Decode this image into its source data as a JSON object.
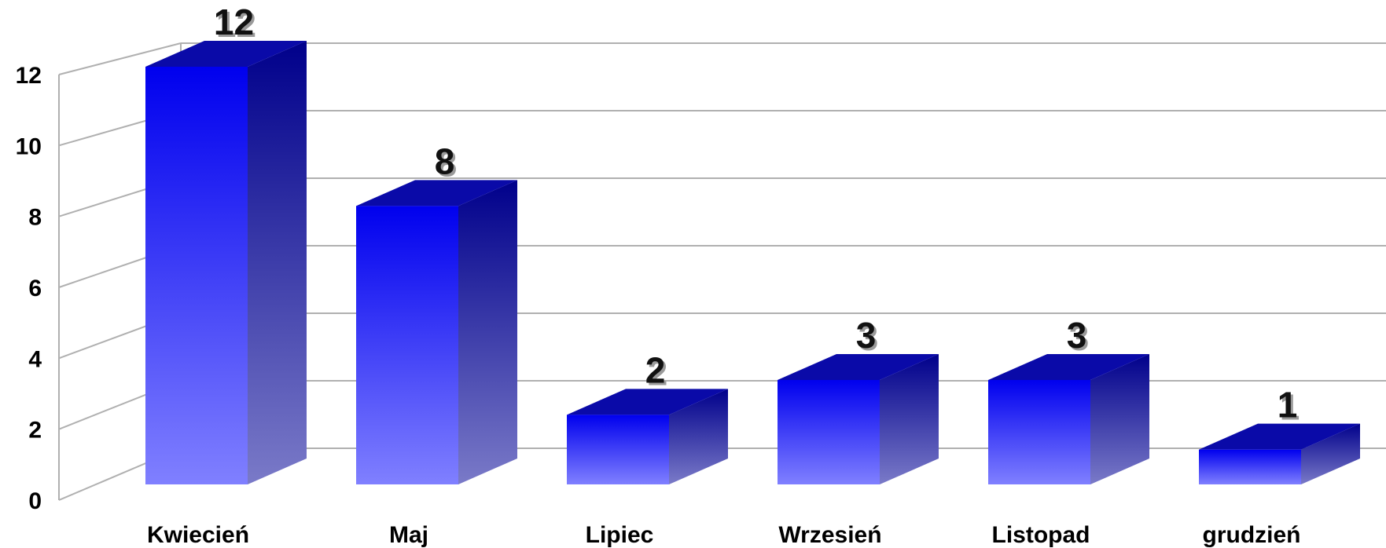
{
  "chart_data": {
    "type": "bar",
    "style": "3d-column",
    "categories": [
      "Kwiecień",
      "Maj",
      "Lipiec",
      "Wrzesień",
      "Listopad",
      "grudzień"
    ],
    "values": [
      12,
      8,
      2,
      3,
      3,
      1
    ],
    "title": "",
    "xlabel": "",
    "ylabel": "",
    "ylim": [
      0,
      12
    ],
    "yticks": [
      0,
      2,
      4,
      6,
      8,
      10,
      12
    ],
    "grid": true,
    "legend": "none",
    "data_labels": true,
    "colors": {
      "bar_front_top": "#0000ee",
      "bar_front_bottom": "#8080ff",
      "bar_side_top": "#00008b",
      "bar_side_bottom": "#7a7ac8",
      "bar_top": "#0a0aa8",
      "grid": "#b0b0b0"
    }
  }
}
